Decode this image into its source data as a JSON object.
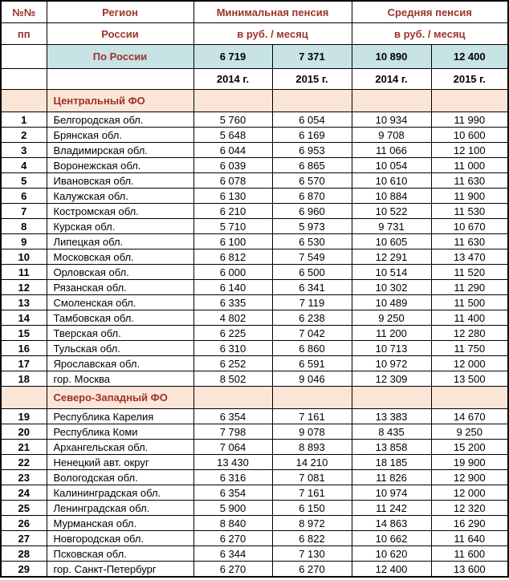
{
  "colors": {
    "header_text_red": "#9C332A",
    "russia_row_bg": "#C8E3E5",
    "section_row_bg": "#FBE5D6",
    "grid_border": "#000000"
  },
  "chart_data": {
    "type": "table",
    "header": {
      "num": [
        "№№",
        "пп"
      ],
      "region": [
        "Регион",
        "России"
      ],
      "groups": [
        {
          "title": "Минимальная пенсия",
          "unit": "в руб. / месяц",
          "years": [
            "2014 г.",
            "2015 г."
          ]
        },
        {
          "title": "Средняя пенсия",
          "unit": "в руб. / месяц",
          "years": [
            "2014 г.",
            "2015 г."
          ]
        }
      ],
      "russia_row": {
        "label": "По России",
        "values": [
          "6 719",
          "7 371",
          "10 890",
          "12 400"
        ]
      }
    },
    "sections": [
      {
        "title": "Центральный ФО",
        "rows": [
          {
            "num": "1",
            "region": "Белгородская обл.",
            "values": [
              "5 760",
              "6 054",
              "10 934",
              "11 990"
            ]
          },
          {
            "num": "2",
            "region": "Брянская обл.",
            "values": [
              "5 648",
              "6 169",
              "9 708",
              "10 600"
            ]
          },
          {
            "num": "3",
            "region": "Владимирская обл.",
            "values": [
              "6 044",
              "6 953",
              "11 066",
              "12 100"
            ]
          },
          {
            "num": "4",
            "region": "Воронежская обл.",
            "values": [
              "6 039",
              "6 865",
              "10 054",
              "11 000"
            ]
          },
          {
            "num": "5",
            "region": "Ивановская обл.",
            "values": [
              "6 078",
              "6 570",
              "10 610",
              "11 630"
            ]
          },
          {
            "num": "6",
            "region": "Калужская обл.",
            "values": [
              "6 130",
              "6 870",
              "10 884",
              "11 900"
            ]
          },
          {
            "num": "7",
            "region": "Костромская обл.",
            "values": [
              "6 210",
              "6 960",
              "10 522",
              "11 530"
            ]
          },
          {
            "num": "8",
            "region": "Курская обл.",
            "values": [
              "5 710",
              "5 973",
              "9 731",
              "10 670"
            ]
          },
          {
            "num": "9",
            "region": "Липецкая обл.",
            "values": [
              "6 100",
              "6 530",
              "10 605",
              "11 630"
            ]
          },
          {
            "num": "10",
            "region": "Московская обл.",
            "values": [
              "6 812",
              "7 549",
              "12 291",
              "13 470"
            ]
          },
          {
            "num": "11",
            "region": "Орловская обл.",
            "values": [
              "6 000",
              "6 500",
              "10 514",
              "11 520"
            ]
          },
          {
            "num": "12",
            "region": "Рязанская обл.",
            "values": [
              "6 140",
              "6 341",
              "10 302",
              "11 290"
            ]
          },
          {
            "num": "13",
            "region": "Смоленская обл.",
            "values": [
              "6 335",
              "7 119",
              "10 489",
              "11 500"
            ]
          },
          {
            "num": "14",
            "region": "Тамбовская обл.",
            "values": [
              "4 802",
              "6 238",
              "9 250",
              "11 400"
            ]
          },
          {
            "num": "15",
            "region": "Тверская обл.",
            "values": [
              "6 225",
              "7 042",
              "11 200",
              "12 280"
            ]
          },
          {
            "num": "16",
            "region": "Тульская обл.",
            "values": [
              "6 310",
              "6 860",
              "10 713",
              "11 750"
            ]
          },
          {
            "num": "17",
            "region": "Ярославская обл.",
            "values": [
              "6 252",
              "6 591",
              "10 972",
              "12 000"
            ]
          },
          {
            "num": "18",
            "region": "гор. Москва",
            "values": [
              "8 502",
              "9 046",
              "12 309",
              "13 500"
            ]
          }
        ]
      },
      {
        "title": "Северо-Западный ФО",
        "rows": [
          {
            "num": "19",
            "region": "Республика Карелия",
            "values": [
              "6 354",
              "7 161",
              "13 383",
              "14 670"
            ]
          },
          {
            "num": "20",
            "region": "Республика Коми",
            "values": [
              "7 798",
              "9 078",
              "8 435",
              "9 250"
            ]
          },
          {
            "num": "21",
            "region": "Архангельская обл.",
            "values": [
              "7 064",
              "8 893",
              "13 858",
              "15 200"
            ]
          },
          {
            "num": "22",
            "region": "Ненецкий авт. округ",
            "values": [
              "13 430",
              "14 210",
              "18 185",
              "19 900"
            ]
          },
          {
            "num": "23",
            "region": "Вологодская обл.",
            "values": [
              "6 316",
              "7 081",
              "11 826",
              "12 900"
            ]
          },
          {
            "num": "24",
            "region": "Калининградская обл.",
            "values": [
              "6 354",
              "7 161",
              "10 974",
              "12 000"
            ]
          },
          {
            "num": "25",
            "region": "Ленинградская обл.",
            "values": [
              "5 900",
              "6 150",
              "11 242",
              "12 320"
            ]
          },
          {
            "num": "26",
            "region": "Мурманская обл.",
            "values": [
              "8 840",
              "8 972",
              "14 863",
              "16 290"
            ]
          },
          {
            "num": "27",
            "region": "Новгородская обл.",
            "values": [
              "6 270",
              "6 822",
              "10 662",
              "11 640"
            ]
          },
          {
            "num": "28",
            "region": "Псковская обл.",
            "values": [
              "6 344",
              "7 130",
              "10 620",
              "11 600"
            ]
          },
          {
            "num": "29",
            "region": "гор. Санкт-Петербург",
            "values": [
              "6 270",
              "6 270",
              "12 400",
              "13 600"
            ]
          }
        ]
      }
    ]
  }
}
